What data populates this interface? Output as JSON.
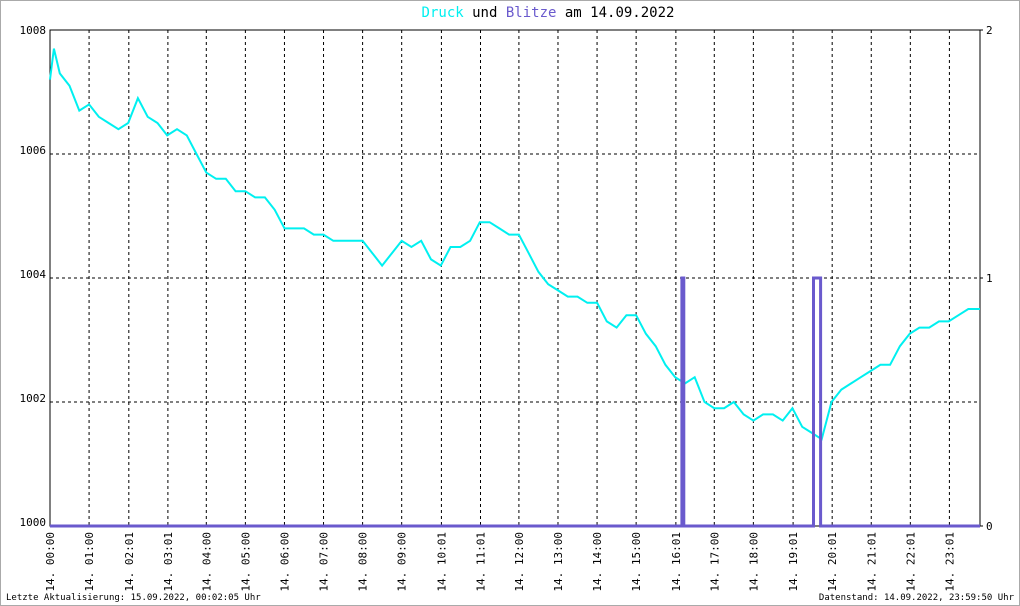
{
  "chart_data": {
    "type": "line",
    "title_prefix_series": "Druck",
    "title_connector": "und",
    "title_suffix": "am 14.09.2022",
    "footer_left": "Letzte Aktualisierung: 15.09.2022, 00:02:05 Uhr",
    "footer_right": "Datenstand: 14.09.2022, 23:59:50 Uhr",
    "xlim": [
      0,
      23.8
    ],
    "xticks": [
      {
        "value": 0,
        "label": "14. 00:00"
      },
      {
        "value": 1,
        "label": "14. 01:00"
      },
      {
        "value": 2.017,
        "label": "14. 02:01"
      },
      {
        "value": 3.017,
        "label": "14. 03:01"
      },
      {
        "value": 4,
        "label": "14. 04:00"
      },
      {
        "value": 5,
        "label": "14. 05:00"
      },
      {
        "value": 6,
        "label": "14. 06:00"
      },
      {
        "value": 7,
        "label": "14. 07:00"
      },
      {
        "value": 8,
        "label": "14. 08:00"
      },
      {
        "value": 9,
        "label": "14. 09:00"
      },
      {
        "value": 10.017,
        "label": "14. 10:01"
      },
      {
        "value": 11.017,
        "label": "14. 11:01"
      },
      {
        "value": 12,
        "label": "14. 12:00"
      },
      {
        "value": 13,
        "label": "14. 13:00"
      },
      {
        "value": 14,
        "label": "14. 14:00"
      },
      {
        "value": 15,
        "label": "14. 15:00"
      },
      {
        "value": 16.017,
        "label": "14. 16:01"
      },
      {
        "value": 17,
        "label": "14. 17:00"
      },
      {
        "value": 18,
        "label": "14. 18:00"
      },
      {
        "value": 19.017,
        "label": "14. 19:01"
      },
      {
        "value": 20.017,
        "label": "14. 20:01"
      },
      {
        "value": 21.017,
        "label": "14. 21:01"
      },
      {
        "value": 22.017,
        "label": "14. 22:01"
      },
      {
        "value": 23.017,
        "label": "14. 23:01"
      }
    ],
    "ylim": [
      1000,
      1008
    ],
    "yticks": [
      1000,
      1002,
      1004,
      1006,
      1008
    ],
    "y2lim": [
      0,
      2
    ],
    "y2ticks": [
      0,
      1,
      2
    ],
    "grid": true,
    "series": [
      {
        "name": "Druck",
        "color": "#00f0f0",
        "x": [
          0,
          0.1,
          0.25,
          0.5,
          0.75,
          1,
          1.25,
          1.5,
          1.75,
          2,
          2.25,
          2.5,
          2.75,
          3,
          3.25,
          3.5,
          3.75,
          4,
          4.25,
          4.5,
          4.75,
          5,
          5.25,
          5.5,
          5.75,
          6,
          6.25,
          6.5,
          6.75,
          7,
          7.25,
          7.5,
          7.75,
          8,
          8.25,
          8.5,
          8.75,
          9,
          9.25,
          9.5,
          9.75,
          10,
          10.25,
          10.5,
          10.75,
          11,
          11.25,
          11.5,
          11.75,
          12,
          12.25,
          12.5,
          12.75,
          13,
          13.25,
          13.5,
          13.75,
          14,
          14.25,
          14.5,
          14.75,
          15,
          15.25,
          15.5,
          15.75,
          16,
          16.25,
          16.5,
          16.75,
          17,
          17.25,
          17.5,
          17.75,
          18,
          18.25,
          18.5,
          18.75,
          19,
          19.25,
          19.5,
          19.75,
          20,
          20.25,
          20.5,
          20.75,
          21,
          21.25,
          21.5,
          21.75,
          22,
          22.25,
          22.5,
          22.75,
          23,
          23.25,
          23.5,
          23.8
        ],
        "values": [
          1007.2,
          1007.7,
          1007.3,
          1007.1,
          1006.7,
          1006.8,
          1006.6,
          1006.5,
          1006.4,
          1006.5,
          1006.9,
          1006.6,
          1006.5,
          1006.3,
          1006.4,
          1006.3,
          1006.0,
          1005.7,
          1005.6,
          1005.6,
          1005.4,
          1005.4,
          1005.3,
          1005.3,
          1005.1,
          1004.8,
          1004.8,
          1004.8,
          1004.7,
          1004.7,
          1004.6,
          1004.6,
          1004.6,
          1004.6,
          1004.4,
          1004.2,
          1004.4,
          1004.6,
          1004.5,
          1004.6,
          1004.3,
          1004.2,
          1004.5,
          1004.5,
          1004.6,
          1004.9,
          1004.9,
          1004.8,
          1004.7,
          1004.7,
          1004.4,
          1004.1,
          1003.9,
          1003.8,
          1003.7,
          1003.7,
          1003.6,
          1003.6,
          1003.3,
          1003.2,
          1003.4,
          1003.4,
          1003.1,
          1002.9,
          1002.6,
          1002.4,
          1002.3,
          1002.4,
          1002.0,
          1001.9,
          1001.9,
          1002.0,
          1001.8,
          1001.7,
          1001.8,
          1001.8,
          1001.7,
          1001.9,
          1001.6,
          1001.5,
          1001.4,
          1002.0,
          1002.2,
          1002.3,
          1002.4,
          1002.5,
          1002.6,
          1002.6,
          1002.9,
          1003.1,
          1003.2,
          1003.2,
          1003.3,
          1003.3,
          1003.4,
          1003.5,
          1003.5
        ]
      },
      {
        "name": "Blitze",
        "color": "#6a5acd",
        "axis": "y2",
        "x": [
          0,
          16.17,
          16.17,
          16.22,
          16.22,
          19.54,
          19.54,
          19.72,
          19.72,
          23.8
        ],
        "values": [
          0,
          0,
          1,
          1,
          0,
          0,
          1,
          1,
          0,
          0
        ]
      }
    ]
  }
}
